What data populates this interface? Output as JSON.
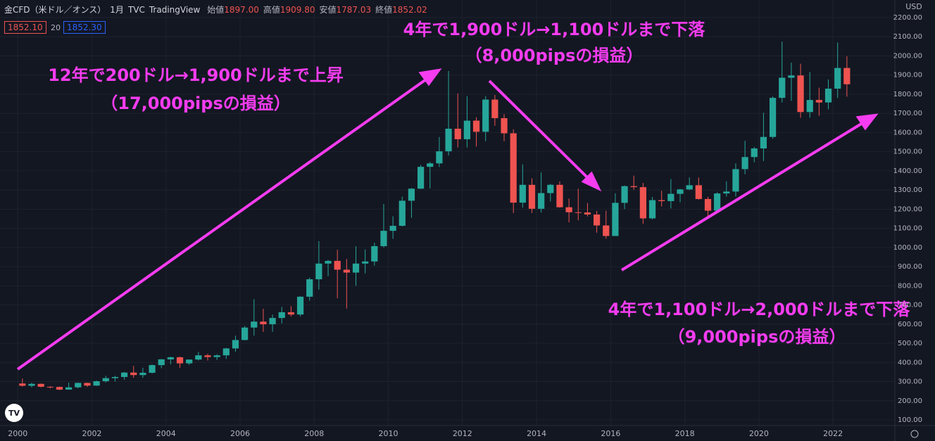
{
  "chart_data": {
    "type": "candlestick",
    "title": "金CFD（米ドル／オンス）",
    "interval": "1月",
    "source": "TVC",
    "platform": "TradingView",
    "ohlc_header": [
      {
        "label": "始値",
        "value": "1897.00"
      },
      {
        "label": "高値",
        "value": "1909.80"
      },
      {
        "label": "安値",
        "value": "1787.03"
      },
      {
        "label": "終値",
        "value": "1852.02"
      }
    ],
    "bid": "1852.10",
    "spread": "20",
    "ask": "1852.30",
    "currency": "USD",
    "annotations": [
      {
        "line1": "12年で200ドル→1,900ドルまで上昇",
        "line2": "（17,000pipsの損益）"
      },
      {
        "line1": "4年で1,900ドル→1,100ドルまで下落",
        "line2": "（8,000pipsの損益）"
      },
      {
        "line1": "4年で1,100ドル→2,000ドルまで下落",
        "line2": "（9,000pipsの損益）"
      }
    ],
    "up_color": "#26a69a",
    "down_color": "#ef5350",
    "grid": true,
    "xlim": [
      1999.52,
      2023.67
    ],
    "xticks": [
      2000,
      2002,
      2004,
      2006,
      2008,
      2010,
      2012,
      2014,
      2016,
      2018,
      2020,
      2022
    ],
    "ylim": [
      70.6,
      2291.8
    ],
    "yticks": [
      {
        "value": 100,
        "label": "100.00"
      },
      {
        "value": 200,
        "label": "200.00"
      },
      {
        "value": 300,
        "label": "300.00"
      },
      {
        "value": 400,
        "label": "400.00"
      },
      {
        "value": 500,
        "label": "500.00"
      },
      {
        "value": 600,
        "label": "600.00"
      },
      {
        "value": 700,
        "label": "700.00"
      },
      {
        "value": 800,
        "label": "800.00"
      },
      {
        "value": 900,
        "label": "900.00"
      },
      {
        "value": 1000,
        "label": "1000.00"
      },
      {
        "value": 1100,
        "label": "1100.00"
      },
      {
        "value": 1200,
        "label": "1200.00"
      },
      {
        "value": 1300,
        "label": "1300.00"
      },
      {
        "value": 1400,
        "label": "1400.00"
      },
      {
        "value": 1500,
        "label": "1500.00"
      },
      {
        "value": 1600,
        "label": "1600.00"
      },
      {
        "value": 1700,
        "label": "1700.00"
      },
      {
        "value": 1800,
        "label": "1800.00"
      },
      {
        "value": 1900,
        "label": "1900.00"
      },
      {
        "value": 2000,
        "label": "2000.00"
      },
      {
        "value": 2100,
        "label": "2100.00"
      },
      {
        "value": 2200,
        "label": "2200.00"
      }
    ],
    "series": [
      {
        "name": "金CFD",
        "values": [
          [
            290,
            316,
            274,
            278
          ],
          [
            278,
            294,
            270,
            288
          ],
          [
            288,
            290,
            270,
            273
          ],
          [
            273,
            275,
            264,
            272
          ],
          [
            272,
            274,
            255,
            258
          ],
          [
            258,
            295,
            257,
            270
          ],
          [
            270,
            295,
            265,
            293
          ],
          [
            293,
            294,
            272,
            279
          ],
          [
            279,
            305,
            277,
            302
          ],
          [
            302,
            330,
            295,
            318
          ],
          [
            318,
            330,
            300,
            324
          ],
          [
            324,
            350,
            310,
            347
          ],
          [
            347,
            382,
            320,
            334
          ],
          [
            334,
            372,
            320,
            346
          ],
          [
            346,
            390,
            342,
            386
          ],
          [
            386,
            418,
            370,
            416
          ],
          [
            416,
            430,
            390,
            427
          ],
          [
            427,
            430,
            372,
            395
          ],
          [
            395,
            415,
            387,
            415
          ],
          [
            415,
            455,
            410,
            437
          ],
          [
            437,
            445,
            410,
            428
          ],
          [
            428,
            442,
            413,
            437
          ],
          [
            437,
            476,
            418,
            473
          ],
          [
            473,
            540,
            456,
            517
          ],
          [
            517,
            590,
            515,
            582
          ],
          [
            582,
            730,
            540,
            613
          ],
          [
            613,
            680,
            560,
            599
          ],
          [
            599,
            650,
            560,
            632
          ],
          [
            632,
            690,
            603,
            662
          ],
          [
            662,
            694,
            640,
            650
          ],
          [
            650,
            745,
            640,
            743
          ],
          [
            743,
            842,
            722,
            834
          ],
          [
            834,
            1033,
            780,
            916
          ],
          [
            916,
            935,
            850,
            930
          ],
          [
            930,
            988,
            735,
            884
          ],
          [
            884,
            940,
            681,
            869
          ],
          [
            869,
            1006,
            800,
            916
          ],
          [
            916,
            990,
            865,
            927
          ],
          [
            927,
            1025,
            905,
            1007
          ],
          [
            1007,
            1227,
            1000,
            1087
          ],
          [
            1087,
            1163,
            1045,
            1113
          ],
          [
            1113,
            1265,
            1110,
            1244
          ],
          [
            1244,
            1310,
            1155,
            1307
          ],
          [
            1307,
            1431,
            1305,
            1421
          ],
          [
            1421,
            1447,
            1308,
            1439
          ],
          [
            1439,
            1577,
            1420,
            1502
          ],
          [
            1502,
            1921,
            1480,
            1620
          ],
          [
            1620,
            1804,
            1522,
            1565
          ],
          [
            1565,
            1790,
            1522,
            1662
          ],
          [
            1662,
            1680,
            1527,
            1604
          ],
          [
            1604,
            1790,
            1555,
            1772
          ],
          [
            1772,
            1796,
            1635,
            1675
          ],
          [
            1675,
            1696,
            1555,
            1596
          ],
          [
            1596,
            1617,
            1180,
            1234
          ],
          [
            1234,
            1434,
            1208,
            1327
          ],
          [
            1327,
            1361,
            1180,
            1202
          ],
          [
            1202,
            1392,
            1182,
            1284
          ],
          [
            1284,
            1332,
            1240,
            1327
          ],
          [
            1327,
            1345,
            1208,
            1210
          ],
          [
            1210,
            1255,
            1131,
            1184
          ],
          [
            1184,
            1307,
            1142,
            1183
          ],
          [
            1183,
            1232,
            1162,
            1172
          ],
          [
            1172,
            1191,
            1077,
            1115
          ],
          [
            1115,
            1192,
            1046,
            1060
          ],
          [
            1060,
            1283,
            1062,
            1233
          ],
          [
            1233,
            1324,
            1200,
            1320
          ],
          [
            1320,
            1375,
            1302,
            1315
          ],
          [
            1315,
            1337,
            1123,
            1152
          ],
          [
            1152,
            1264,
            1146,
            1247
          ],
          [
            1247,
            1296,
            1214,
            1242
          ],
          [
            1242,
            1357,
            1204,
            1280
          ],
          [
            1280,
            1306,
            1236,
            1303
          ],
          [
            1303,
            1366,
            1300,
            1325
          ],
          [
            1325,
            1365,
            1250,
            1253
          ],
          [
            1253,
            1265,
            1160,
            1192
          ],
          [
            1192,
            1288,
            1181,
            1282
          ],
          [
            1282,
            1346,
            1266,
            1292
          ],
          [
            1292,
            1439,
            1266,
            1409
          ],
          [
            1409,
            1557,
            1382,
            1472
          ],
          [
            1472,
            1525,
            1445,
            1517
          ],
          [
            1517,
            1703,
            1451,
            1577
          ],
          [
            1577,
            1789,
            1568,
            1781
          ],
          [
            1781,
            2075,
            1757,
            1886
          ],
          [
            1886,
            1965,
            1765,
            1898
          ],
          [
            1898,
            1959,
            1677,
            1707
          ],
          [
            1707,
            1916,
            1677,
            1770
          ],
          [
            1770,
            1834,
            1687,
            1757
          ],
          [
            1757,
            1877,
            1721,
            1829
          ],
          [
            1829,
            2070,
            1780,
            1937
          ],
          [
            1937,
            1998,
            1787,
            1852
          ]
        ]
      }
    ]
  }
}
